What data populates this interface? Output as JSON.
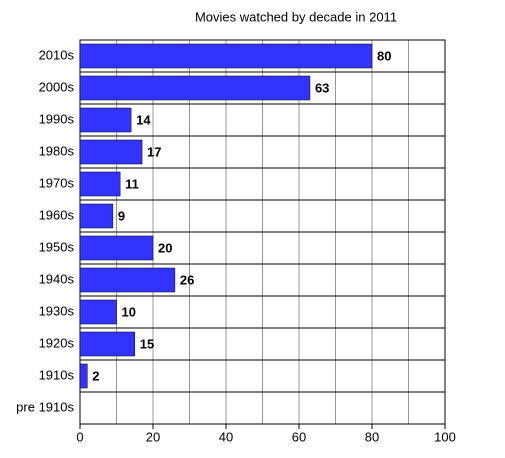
{
  "chart_data": {
    "type": "bar",
    "orientation": "horizontal",
    "title": "Movies watched by decade in 2011",
    "categories": [
      "2010s",
      "2000s",
      "1990s",
      "1980s",
      "1970s",
      "1960s",
      "1950s",
      "1940s",
      "1930s",
      "1920s",
      "1910s",
      "pre 1910s"
    ],
    "values": [
      80,
      63,
      14,
      17,
      11,
      9,
      20,
      26,
      10,
      15,
      2,
      null
    ],
    "color": "#3333ff",
    "xlim": [
      0,
      100
    ],
    "xticks": [
      0,
      20,
      40,
      60,
      80,
      100
    ],
    "minor_xticks": [
      10,
      30,
      50,
      70,
      90
    ],
    "grid": true
  }
}
